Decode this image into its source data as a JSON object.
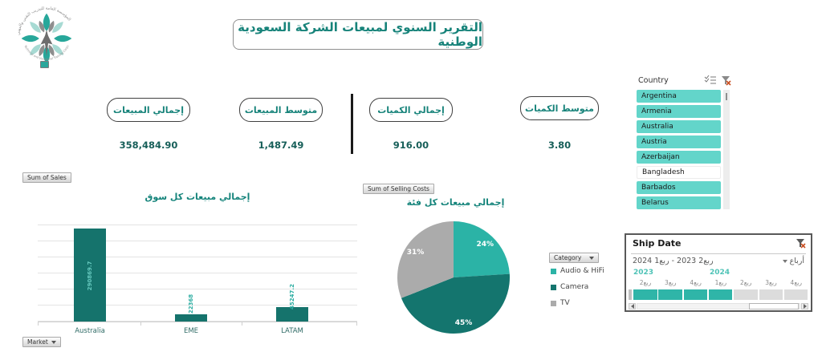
{
  "header": {
    "title": "التقرير السنوي لمبيعات الشركة السعودية الوطنية",
    "logo_arc_top": "المؤسسة العامة للتدريب التقني والمهني",
    "logo_arc_bottom": "Technical and Vocational Training Corporation"
  },
  "kpis": [
    {
      "label": "إجمالي المبيعات",
      "value": "358,484.90"
    },
    {
      "label": "متوسط المبيعات",
      "value": "1,487.49"
    },
    {
      "label": "إجمالي الكميات",
      "value": "916.00"
    },
    {
      "label": "متوسط الكميات",
      "value": "3.80"
    }
  ],
  "country_slicer": {
    "header": "Country",
    "items": [
      {
        "label": "Argentina",
        "selected": true
      },
      {
        "label": "Armenia",
        "selected": true
      },
      {
        "label": "Australia",
        "selected": true
      },
      {
        "label": "Austria",
        "selected": true
      },
      {
        "label": "Azerbaijan",
        "selected": true
      },
      {
        "label": "Bangladesh",
        "selected": false
      },
      {
        "label": "Barbados",
        "selected": true
      },
      {
        "label": "Belarus",
        "selected": true
      }
    ],
    "selected_color": "#63D5CA"
  },
  "bar_chart_ui": {
    "field_button": "Sum of Sales",
    "axis_field_button": "Market"
  },
  "pie_chart_ui": {
    "field_button": "Sum of Selling Costs",
    "legend_button": "Category"
  },
  "timeline": {
    "header": "Ship Date",
    "range_label": "ربع2 2023 - ربع1 2024",
    "period_dropdown": "أرباع",
    "years": [
      {
        "label": "2023",
        "col": 0
      },
      {
        "label": "2024",
        "col": 3
      }
    ],
    "quarters": [
      {
        "label": "ربع2",
        "year": "2023",
        "selected": true
      },
      {
        "label": "ربع3",
        "year": "2023",
        "selected": true
      },
      {
        "label": "ربع4",
        "year": "2023",
        "selected": true
      },
      {
        "label": "ربع1",
        "year": "2024",
        "selected": true
      },
      {
        "label": "ربع2",
        "year": "2024",
        "selected": false
      },
      {
        "label": "ربع3",
        "year": "2024",
        "selected": false
      },
      {
        "label": "ربع4",
        "year": "2024",
        "selected": false
      }
    ],
    "colors": {
      "selected": "#2FB5A8",
      "unselected": "#DCDCDC"
    }
  },
  "chart_data": [
    {
      "id": "sales-per-market",
      "type": "bar",
      "title": "إجمالي مبيعات كل سوق",
      "categories": [
        "Australia",
        "EME",
        "LATAM"
      ],
      "values": [
        290869.7,
        22368,
        45247.2
      ],
      "data_labels": [
        "290869.7",
        "22368",
        "45247.2"
      ],
      "xlabel": "Market",
      "ylabel": "Sum of Sales",
      "ylim": [
        0,
        350000
      ],
      "gridline_step": 50000,
      "grid": true,
      "bar_color": "#15736C",
      "label_color_inside": "#66C9BF",
      "label_color_outside": "#2FAEA3",
      "legend_position": "none"
    },
    {
      "id": "sales-per-category",
      "type": "pie",
      "title": "إجمالي مبيعات كل فئة",
      "slices": [
        {
          "label": "Audio & HiFi",
          "pct": 24,
          "color": "#2BB3A6"
        },
        {
          "label": "Camera",
          "pct": 45,
          "color": "#14756E"
        },
        {
          "label": "TV",
          "pct": 31,
          "color": "#ABABAB"
        }
      ],
      "start_angle_deg": 0,
      "direction": "clockwise",
      "legend_position": "right"
    }
  ]
}
